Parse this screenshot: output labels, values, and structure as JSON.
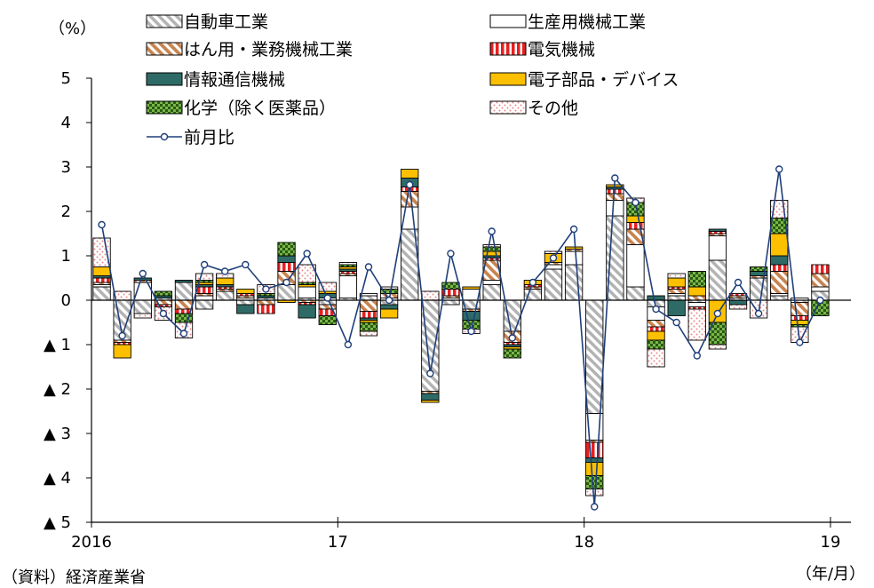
{
  "chart_data": {
    "type": "bar",
    "subtype": "stacked bar with line",
    "ylabel": "（%）",
    "xunit": "（年/月）",
    "source": "（資料）経済産業省",
    "ylim": [
      -5,
      5
    ],
    "yticks": [
      {
        "value": 5,
        "label": "5"
      },
      {
        "value": 4,
        "label": "4"
      },
      {
        "value": 3,
        "label": "3"
      },
      {
        "value": 2,
        "label": "2"
      },
      {
        "value": 1,
        "label": "1"
      },
      {
        "value": 0,
        "label": "0"
      },
      {
        "value": -1,
        "label": "▲ 1"
      },
      {
        "value": -2,
        "label": "▲ 2"
      },
      {
        "value": -3,
        "label": "▲ 3"
      },
      {
        "value": -4,
        "label": "▲ 4"
      },
      {
        "value": -5,
        "label": "▲ 5"
      }
    ],
    "xticks": [
      {
        "index": 0,
        "label": "2016"
      },
      {
        "index": 12,
        "label": "17"
      },
      {
        "index": 24,
        "label": "18"
      },
      {
        "index": 36,
        "label": "19"
      }
    ],
    "months": 36,
    "legend_position": "top",
    "series": [
      {
        "key": "auto",
        "name": "自動車工業",
        "pattern": "diag-gray",
        "values": [
          0.3,
          -0.9,
          -0.3,
          0.05,
          0.4,
          -0.2,
          0.2,
          -0.1,
          0.05,
          0.35,
          0.05,
          -0.1,
          0.05,
          0.1,
          -0.1,
          1.6,
          -2.05,
          -0.1,
          -0.2,
          0.35,
          -0.7,
          0.25,
          0.7,
          0.8,
          -2.55,
          1.9,
          0.3,
          -0.15,
          0.1,
          -0.05,
          0.9,
          0.05,
          0.5,
          0.1,
          -0.05,
          0.2
        ]
      },
      {
        "key": "machinery",
        "name": "生産用機械工業",
        "pattern": "white",
        "values": [
          0.05,
          0,
          0.4,
          0,
          0,
          0.1,
          0,
          0.05,
          0,
          0,
          0.25,
          0.05,
          0.5,
          0.05,
          0.05,
          0.5,
          0,
          0.05,
          0.25,
          0.1,
          0,
          0,
          0.1,
          0.3,
          -0.6,
          0.35,
          0.95,
          -0.3,
          0.05,
          -0.1,
          0.55,
          0,
          0,
          0.05,
          0.05,
          0.1
        ]
      },
      {
        "key": "general",
        "name": "はん用・業務機械工業",
        "pattern": "diag-brown",
        "values": [
          0.05,
          -0.05,
          0.05,
          -0.1,
          -0.2,
          0.05,
          0.05,
          0.05,
          -0.1,
          0.3,
          -0.05,
          -0.1,
          0.05,
          -0.25,
          0.1,
          0.35,
          -0.05,
          0.05,
          -0.05,
          0.45,
          -0.25,
          0.05,
          0.05,
          0.05,
          -0.05,
          0.15,
          0.35,
          -0.15,
          0.1,
          0.1,
          0.05,
          0.05,
          0.05,
          0.5,
          -0.3,
          0.3
        ]
      },
      {
        "key": "electric",
        "name": "電気機械",
        "pattern": "stripe-red",
        "values": [
          0.1,
          -0.05,
          0,
          -0.05,
          -0.1,
          0.15,
          0.05,
          0.05,
          -0.2,
          0.2,
          -0.05,
          -0.15,
          0.05,
          -0.15,
          0,
          0.1,
          0,
          0.15,
          0,
          0.05,
          -0.05,
          0.05,
          0,
          0,
          -0.35,
          0.1,
          0.15,
          -0.1,
          0.05,
          -0.05,
          0.05,
          0.05,
          0,
          0.15,
          -0.1,
          0.2
        ]
      },
      {
        "key": "ict",
        "name": "情報通信機械",
        "pattern": "solid-teal",
        "values": [
          0.05,
          0,
          0.05,
          0.05,
          0.05,
          0.05,
          0.05,
          -0.2,
          0.05,
          0.15,
          -0.3,
          0.1,
          0.05,
          -0.05,
          -0.1,
          0.2,
          -0.15,
          0,
          -0.2,
          0.05,
          -0.05,
          0,
          0,
          0,
          -0.1,
          0.05,
          0,
          0.1,
          -0.35,
          0,
          0.05,
          -0.1,
          0.1,
          0.2,
          0,
          0
        ]
      },
      {
        "key": "electronic",
        "name": "電子部品・デバイス",
        "pattern": "solid-yellow",
        "values": [
          0.2,
          -0.3,
          0,
          0,
          0,
          0.05,
          0.15,
          0.1,
          0,
          -0.05,
          0.05,
          0.05,
          0.05,
          -0.05,
          -0.2,
          0.2,
          -0.05,
          0,
          0.05,
          0.1,
          -0.05,
          0.1,
          0.2,
          0.05,
          -0.3,
          0.05,
          0.15,
          -0.2,
          0.2,
          0.2,
          -0.5,
          0,
          0,
          0.5,
          -0.1,
          0
        ]
      },
      {
        "key": "chemical",
        "name": "化学（除く医薬品）",
        "pattern": "check-green",
        "values": [
          0,
          0,
          0,
          0.1,
          -0.2,
          0.05,
          0,
          0,
          0.05,
          0.3,
          0.05,
          -0.2,
          0.05,
          -0.2,
          0.1,
          0,
          0,
          0.15,
          -0.2,
          0.1,
          -0.2,
          0,
          0,
          0,
          -0.3,
          0,
          0.3,
          -0.2,
          0,
          0.35,
          -0.5,
          0,
          0.1,
          0.35,
          -0.05,
          -0.35
        ]
      },
      {
        "key": "others",
        "name": "その他",
        "pattern": "dots-pink",
        "values": [
          0.65,
          0.2,
          -0.1,
          -0.3,
          -0.35,
          0.15,
          0.1,
          0,
          0.2,
          0,
          0.4,
          0.2,
          0.05,
          -0.1,
          0.05,
          0,
          0.2,
          0,
          -0.1,
          0.05,
          0,
          0,
          0.05,
          0,
          -0.15,
          0,
          0.1,
          -0.4,
          0.1,
          -0.7,
          -0.1,
          -0.1,
          -0.4,
          0.4,
          -0.35,
          0
        ]
      }
    ],
    "line": {
      "name": "前月比",
      "values": [
        1.7,
        -0.8,
        0.6,
        -0.3,
        -0.75,
        0.8,
        0.65,
        0.8,
        0.25,
        0.4,
        1.05,
        0.05,
        -1.0,
        0.75,
        0,
        2.6,
        -1.65,
        1.05,
        -0.7,
        1.55,
        -0.85,
        0.4,
        0.95,
        1.6,
        -4.65,
        2.75,
        2.2,
        -0.2,
        -0.5,
        -1.25,
        -0.3,
        0.4,
        -0.3,
        2.95,
        -0.95,
        0
      ]
    }
  }
}
